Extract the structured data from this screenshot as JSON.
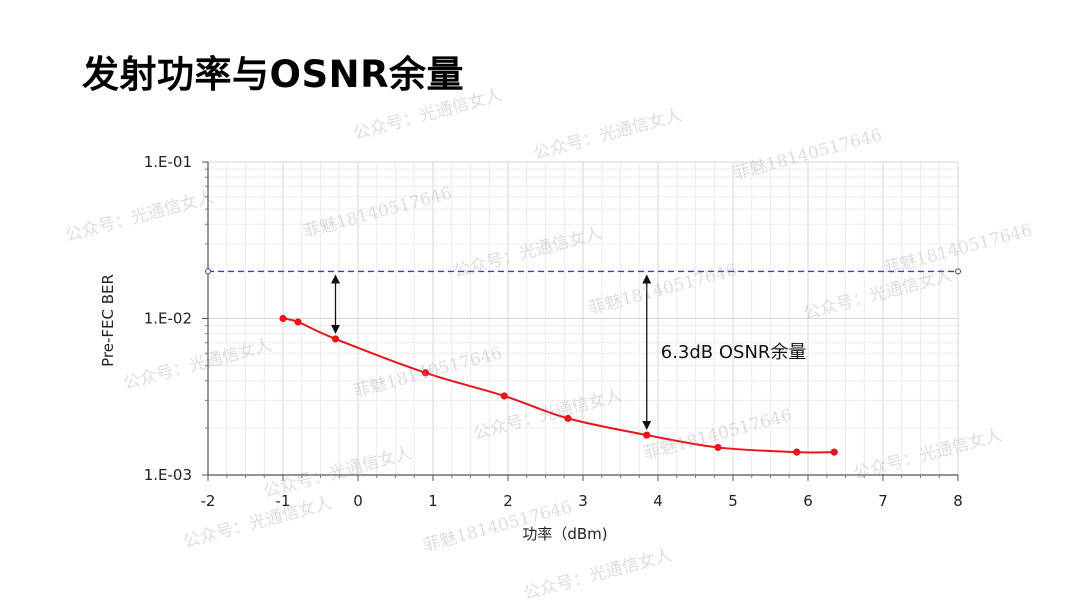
{
  "title": "发射功率与OSNR余量",
  "watermarks": [
    "公众号：光通信女人",
    "菲魅18140517646",
    "公众号：光通信女人",
    "公众号：光通信女人",
    "菲魅18140517646",
    "公众号：光通信女人",
    "菲魅18140517646",
    "公众号：光通信女人",
    "公众号：光通信女人",
    "菲魅18140517646",
    "公众号：光通信女人",
    "菲魅18140517646",
    "公众号：光通信女人",
    "菲魅18140517646",
    "公众号：光通信女人",
    "公众号：光通信女人",
    "菲魅18140517646",
    "公众号：光通信女人"
  ],
  "chart_data": {
    "type": "line",
    "xlabel": "功率（dBm)",
    "ylabel": "Pre-FEC BER",
    "xlim": [
      -2,
      8
    ],
    "x_ticks": [
      -2,
      -1,
      0,
      1,
      2,
      3,
      4,
      5,
      6,
      7,
      8
    ],
    "y_scale": "log",
    "ylim": [
      0.001,
      0.1
    ],
    "y_ticks": [
      0.1,
      0.01,
      0.001
    ],
    "y_tick_labels": [
      "1.E-01",
      "1.E-02",
      "1.E-03"
    ],
    "grid": true,
    "colors": {
      "series": "#e8141c",
      "threshold": "#3b3bc4",
      "grid": "#e3e3e3"
    },
    "series": [
      {
        "x": [
          -1.0,
          -0.8,
          -0.3,
          0.9,
          1.95,
          2.8,
          3.85,
          4.8,
          5.85,
          6.35
        ],
        "y": [
          0.01,
          0.0095,
          0.0074,
          0.0045,
          0.0032,
          0.0023,
          0.0018,
          0.0015,
          0.0014,
          0.0014
        ]
      }
    ],
    "threshold_line": {
      "y": 0.02,
      "style": "dashed"
    },
    "annotations": [
      {
        "type": "double-arrow",
        "x": -0.3,
        "y_from": 0.02,
        "y_to": 0.0074,
        "label": ""
      },
      {
        "type": "double-arrow",
        "x": 3.85,
        "y_from": 0.02,
        "y_to": 0.0018,
        "label": "6.3dB OSNR余量"
      }
    ]
  }
}
